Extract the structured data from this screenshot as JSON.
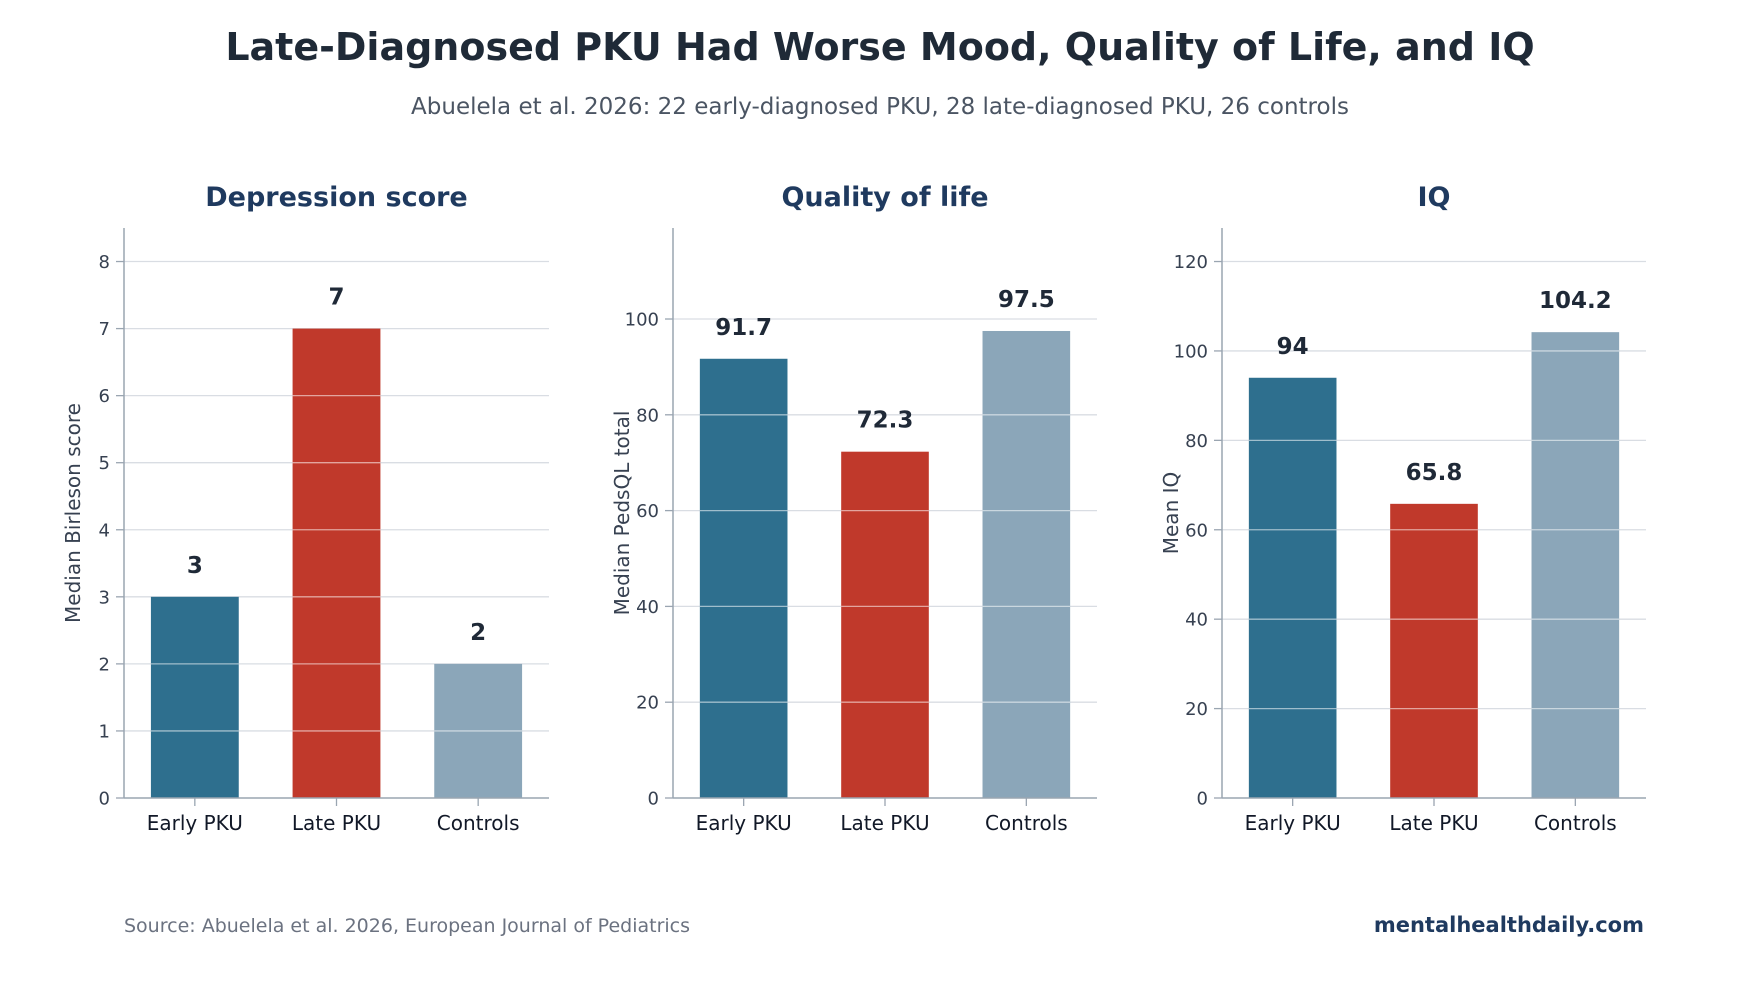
{
  "title": "Late-Diagnosed PKU Had Worse Mood, Quality of Life, and IQ",
  "subtitle": "Abuelela et al. 2026: 22 early-diagnosed PKU, 28 late-diagnosed PKU, 26 controls",
  "footer": {
    "source": "Source: Abuelela et al. 2026, European Journal of Pediatrics",
    "brand": "mentalhealthdaily.com"
  },
  "colors": {
    "title": "#1f2a37",
    "subtitle": "#4b5563",
    "panel_title": "#1f3a5f",
    "axis": "#9aa5b1",
    "tick_label": "#374151",
    "grid": "#d9dde3",
    "value_label": "#1f2937",
    "source": "#6b7280",
    "brand": "#1f3a5f"
  },
  "chart_data": [
    {
      "type": "bar",
      "title": "Depression score",
      "ylabel": "Median Birleson score",
      "categories": [
        "Early PKU",
        "Late PKU",
        "Controls"
      ],
      "values": [
        3,
        7,
        2
      ],
      "value_labels": [
        "3",
        "7",
        "2"
      ],
      "colors": [
        "#2e6f8e",
        "#c0392b",
        "#8ba6b9"
      ],
      "ylim": [
        0,
        8.5
      ],
      "yticks": [
        0,
        1,
        2,
        3,
        4,
        5,
        6,
        7,
        8
      ],
      "grid": true
    },
    {
      "type": "bar",
      "title": "Quality of life",
      "ylabel": "Median PedsQL total",
      "categories": [
        "Early PKU",
        "Late PKU",
        "Controls"
      ],
      "values": [
        91.7,
        72.3,
        97.5
      ],
      "value_labels": [
        "91.7",
        "72.3",
        "97.5"
      ],
      "colors": [
        "#2e6f8e",
        "#c0392b",
        "#8ba6b9"
      ],
      "ylim": [
        0,
        119
      ],
      "yticks": [
        0,
        20,
        40,
        60,
        80,
        100
      ],
      "grid": true
    },
    {
      "type": "bar",
      "title": "IQ",
      "ylabel": "Mean IQ",
      "categories": [
        "Early PKU",
        "Late PKU",
        "Controls"
      ],
      "values": [
        94,
        65.8,
        104.2
      ],
      "value_labels": [
        "94",
        "65.8",
        "104.2"
      ],
      "colors": [
        "#2e6f8e",
        "#c0392b",
        "#8ba6b9"
      ],
      "ylim": [
        0,
        127.5
      ],
      "yticks": [
        0,
        20,
        40,
        60,
        80,
        100,
        120
      ],
      "grid": true
    }
  ]
}
